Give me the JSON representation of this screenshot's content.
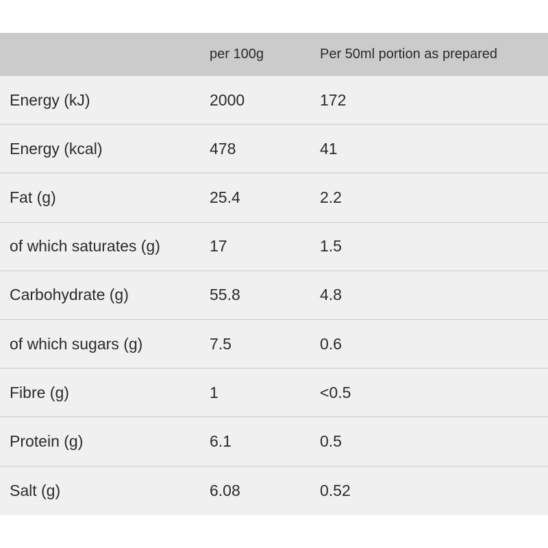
{
  "table": {
    "headers": [
      "",
      "per 100g",
      "Per 50ml portion as prepared"
    ],
    "rows": [
      {
        "nutrient": "Energy (kJ)",
        "per_100g": "2000",
        "per_portion": "172"
      },
      {
        "nutrient": "Energy (kcal)",
        "per_100g": "478",
        "per_portion": "41"
      },
      {
        "nutrient": "Fat (g)",
        "per_100g": "25.4",
        "per_portion": "2.2"
      },
      {
        "nutrient": "of which saturates (g)",
        "per_100g": "17",
        "per_portion": "1.5"
      },
      {
        "nutrient": "Carbohydrate (g)",
        "per_100g": "55.8",
        "per_portion": "4.8"
      },
      {
        "nutrient": "of which sugars (g)",
        "per_100g": "7.5",
        "per_portion": "0.6"
      },
      {
        "nutrient": "Fibre (g)",
        "per_100g": "1",
        "per_portion": "<0.5"
      },
      {
        "nutrient": "Protein (g)",
        "per_100g": "6.1",
        "per_portion": "0.5"
      },
      {
        "nutrient": "Salt (g)",
        "per_100g": "6.08",
        "per_portion": "0.52"
      }
    ]
  },
  "colors": {
    "header_background": "#cbcbcb",
    "row_background": "#f0f0f0",
    "row_divider": "#c9c9c9",
    "text": "#2a2a2a"
  }
}
